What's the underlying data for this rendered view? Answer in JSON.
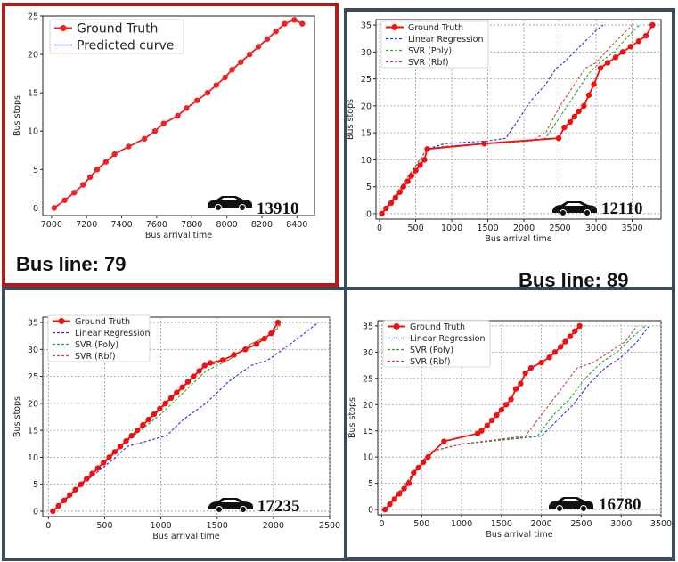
{
  "bus_line_labels": [
    "Bus line: 79",
    "Bus line: 89"
  ],
  "chart_data": [
    {
      "type": "line",
      "panel": "top-left",
      "xlabel": "Bus arrival time",
      "ylabel": "Bus stops",
      "xlim": [
        6950,
        8500
      ],
      "ylim": [
        -1,
        25
      ],
      "xticks": [
        7000,
        7200,
        7400,
        7600,
        7800,
        8000,
        8200,
        8400
      ],
      "yticks": [
        0,
        5,
        10,
        15,
        20,
        25
      ],
      "grid": false,
      "legend_position": "upper-left",
      "vehicle_count": "13910",
      "series": [
        {
          "name": "Ground Truth",
          "color": "#ee2222",
          "style": "solid-marker",
          "x": [
            7015,
            7075,
            7130,
            7180,
            7220,
            7260,
            7310,
            7360,
            7440,
            7530,
            7590,
            7640,
            7720,
            7770,
            7830,
            7890,
            7940,
            7990,
            8030,
            8080,
            8130,
            8180,
            8230,
            8280,
            8330,
            8385,
            8430
          ],
          "y": [
            0,
            1,
            2,
            3,
            4,
            5,
            6,
            7,
            8,
            9,
            10,
            11,
            12,
            13,
            14,
            15,
            16,
            17,
            18,
            19,
            20,
            21,
            22,
            23,
            24,
            24.5,
            24
          ]
        },
        {
          "name": "Predicted curve",
          "color": "#3333cc",
          "style": "solid",
          "x": [
            7015,
            7075,
            7130,
            7180,
            7220,
            7260,
            7310,
            7360,
            7440,
            7530,
            7590,
            7640,
            7720,
            7770,
            7830,
            7890,
            7940,
            7990,
            8030,
            8080,
            8130,
            8180,
            8230,
            8280,
            8330,
            8385,
            8430
          ],
          "y": [
            0,
            1,
            2,
            3,
            4,
            5,
            6,
            7,
            8,
            9,
            10,
            11,
            12,
            13,
            14,
            15,
            16,
            17,
            18,
            19,
            20,
            21,
            22,
            23,
            24,
            24.5,
            24
          ]
        }
      ]
    },
    {
      "type": "line",
      "panel": "top-right",
      "xlabel": "Bus arrival time",
      "ylabel": "Bus stops",
      "xlim": [
        -50,
        3900
      ],
      "ylim": [
        -1,
        36
      ],
      "xticks": [
        0,
        500,
        1000,
        1500,
        2000,
        2500,
        3000,
        3500
      ],
      "yticks": [
        0,
        5,
        10,
        15,
        20,
        25,
        30,
        35
      ],
      "grid": true,
      "legend_position": "upper-left",
      "vehicle_count": "12110",
      "series": [
        {
          "name": "Ground Truth",
          "color": "#ee1111",
          "style": "solid-marker",
          "x": [
            30,
            90,
            160,
            220,
            280,
            330,
            390,
            440,
            500,
            560,
            620,
            660,
            1450,
            2480,
            2560,
            2640,
            2700,
            2760,
            2830,
            2900,
            2970,
            3060,
            3160,
            3270,
            3370,
            3480,
            3590,
            3690,
            3780
          ],
          "y": [
            0,
            1,
            2,
            3,
            4,
            5,
            6,
            7,
            8,
            9,
            10,
            12,
            13,
            14,
            16,
            17,
            18,
            19,
            20,
            22,
            24,
            27,
            28,
            29,
            30,
            31,
            32,
            33,
            35
          ]
        },
        {
          "name": "Linear Regression",
          "color": "#2233ee",
          "style": "dashed",
          "x": [
            30,
            200,
            400,
            660,
            900,
            1500,
            1750,
            1900,
            2100,
            2300,
            2450,
            2550,
            2700,
            2850,
            3000,
            3100
          ],
          "y": [
            0,
            3,
            7,
            12,
            13,
            13.5,
            14,
            17,
            21,
            24,
            27,
            28,
            30,
            32,
            34,
            35
          ]
        },
        {
          "name": "SVR (Poly)",
          "color": "#22aa22",
          "style": "dashed",
          "x": [
            30,
            200,
            400,
            660,
            900,
            1500,
            2100,
            2300,
            2500,
            2700,
            2900,
            3050,
            3250,
            3450,
            3600
          ],
          "y": [
            0,
            3,
            7,
            12,
            12.5,
            13,
            13.5,
            14,
            18,
            22,
            26,
            28,
            30,
            33,
            35
          ]
        },
        {
          "name": "SVR (Rbf)",
          "color": "#cc4444",
          "style": "dashed",
          "x": [
            30,
            200,
            400,
            660,
            900,
            1500,
            2100,
            2300,
            2500,
            2700,
            2850,
            3000,
            3200,
            3350,
            3500
          ],
          "y": [
            0,
            3,
            7,
            12,
            12.5,
            13,
            13.5,
            15,
            20,
            24,
            27,
            28,
            31,
            33,
            35
          ]
        }
      ]
    },
    {
      "type": "line",
      "panel": "bottom-left",
      "xlabel": "Bus arrival time",
      "ylabel": "Bus stops",
      "xlim": [
        -50,
        2500
      ],
      "ylim": [
        -1,
        36
      ],
      "xticks": [
        0,
        500,
        1000,
        1500,
        2000,
        2500
      ],
      "yticks": [
        0,
        5,
        10,
        15,
        20,
        25,
        30,
        35
      ],
      "grid": true,
      "legend_position": "upper-left",
      "vehicle_count": "17235",
      "series": [
        {
          "name": "Ground Truth",
          "color": "#ee1111",
          "style": "solid-marker",
          "x": [
            40,
            90,
            140,
            190,
            240,
            290,
            340,
            390,
            440,
            490,
            540,
            590,
            640,
            690,
            740,
            790,
            840,
            890,
            940,
            990,
            1040,
            1090,
            1140,
            1190,
            1240,
            1290,
            1340,
            1390,
            1440,
            1550,
            1650,
            1750,
            1850,
            1920,
            1980,
            2040
          ],
          "y": [
            0,
            1,
            2,
            3,
            4,
            5,
            6,
            7,
            8,
            9,
            10,
            11,
            12,
            13,
            14,
            15,
            16,
            17,
            18,
            19,
            20,
            21,
            22,
            23,
            24,
            25,
            26,
            27,
            27.5,
            28,
            29,
            30,
            31,
            32,
            33,
            35
          ]
        },
        {
          "name": "Linear Regression",
          "color": "#2233ee",
          "style": "dashed",
          "x": [
            40,
            300,
            600,
            700,
            1050,
            1200,
            1400,
            1600,
            1800,
            1950,
            2150,
            2400
          ],
          "y": [
            0,
            5,
            10,
            12,
            14,
            17,
            20,
            24,
            27,
            28,
            31,
            35
          ]
        },
        {
          "name": "SVR (Poly)",
          "color": "#22aa22",
          "style": "dashed",
          "x": [
            40,
            300,
            600,
            700,
            1000,
            1200,
            1400,
            1600,
            1800,
            2000,
            2080
          ],
          "y": [
            0,
            5,
            11,
            13,
            18,
            22,
            26,
            28,
            31,
            33,
            35
          ]
        },
        {
          "name": "SVR (Rbf)",
          "color": "#cc4444",
          "style": "dashed",
          "x": [
            40,
            300,
            600,
            700,
            1000,
            1200,
            1400,
            1600,
            1800,
            2000,
            2060
          ],
          "y": [
            0,
            5,
            11,
            13,
            19,
            23,
            27,
            28,
            31,
            33,
            35
          ]
        }
      ]
    },
    {
      "type": "line",
      "panel": "bottom-right",
      "xlabel": "Bus arrival time",
      "ylabel": "Bus stops",
      "xlim": [
        -50,
        3500
      ],
      "ylim": [
        -1,
        36
      ],
      "xticks": [
        0,
        500,
        1000,
        1500,
        2000,
        2500,
        3000,
        3500
      ],
      "yticks": [
        0,
        5,
        10,
        15,
        20,
        25,
        30,
        35
      ],
      "grid": true,
      "legend_position": "upper-left",
      "vehicle_count": "16780",
      "series": [
        {
          "name": "Ground Truth",
          "color": "#ee1111",
          "style": "solid-marker",
          "x": [
            40,
            100,
            160,
            220,
            280,
            340,
            400,
            460,
            520,
            580,
            780,
            1200,
            1250,
            1320,
            1380,
            1440,
            1500,
            1560,
            1620,
            1680,
            1740,
            1800,
            1870,
            2000,
            2100,
            2170,
            2240,
            2300,
            2360,
            2420,
            2480
          ],
          "y": [
            0,
            1,
            2,
            3,
            4,
            5,
            7,
            8,
            9,
            10,
            13,
            14.5,
            15,
            16,
            17,
            18,
            19,
            20,
            21,
            23,
            24,
            26,
            27,
            28,
            29,
            30,
            31,
            32,
            33,
            34,
            35
          ]
        },
        {
          "name": "Linear Regression",
          "color": "#2233ee",
          "style": "dashed",
          "x": [
            40,
            300,
            600,
            1000,
            2000,
            2200,
            2400,
            2600,
            2800,
            3000,
            3200,
            3350
          ],
          "y": [
            0,
            5,
            11,
            12.5,
            14,
            17,
            20,
            24,
            27,
            29,
            32,
            35
          ]
        },
        {
          "name": "SVR (Poly)",
          "color": "#22aa22",
          "style": "dashed",
          "x": [
            40,
            300,
            600,
            1000,
            1950,
            2150,
            2350,
            2550,
            2750,
            2950,
            3150,
            3300
          ],
          "y": [
            0,
            5,
            11,
            12.5,
            14,
            18,
            21,
            25,
            28,
            30,
            33,
            35
          ]
        },
        {
          "name": "SVR (Rbf)",
          "color": "#cc4444",
          "style": "dashed",
          "x": [
            40,
            300,
            600,
            1000,
            1800,
            2000,
            2200,
            2450,
            2650,
            2850,
            3050,
            3200
          ],
          "y": [
            0,
            5,
            11,
            12.5,
            14,
            18,
            22,
            27,
            28,
            30,
            32,
            35
          ]
        }
      ]
    }
  ]
}
